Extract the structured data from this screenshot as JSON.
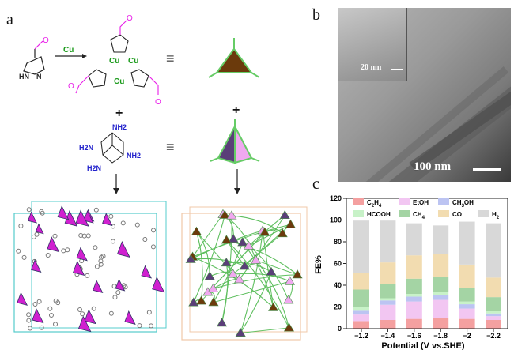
{
  "panels": {
    "a": "a",
    "b": "b",
    "c": "c"
  },
  "scheme": {
    "reagent_label": "Cu",
    "ligand_atoms": {
      "oxygen": "O",
      "nh": "HN",
      "n": "N"
    },
    "trimer_atoms": {
      "cu": "Cu",
      "n": "N",
      "o": "O"
    },
    "amine_label": "NH2",
    "amine_label_left": "H2N",
    "plus": "+",
    "equiv": "≡"
  },
  "tem": {
    "inset_scale": "20 nm",
    "main_scale": "100 nm"
  },
  "colors": {
    "magenta": "#e81ee8",
    "green": "#1a9a1a",
    "blue": "#2222cc",
    "brown": "#6b3a0c",
    "purple": "#5a3e78",
    "pink": "#f0a8f0"
  },
  "chart_data": {
    "type": "bar",
    "stacked": true,
    "categories": [
      "-1.2",
      "-1.4",
      "-1.6",
      "-1.8",
      "-2",
      "-2.2"
    ],
    "xlabel": "Potential (V vs.SHE)",
    "ylabel": "FE%",
    "ylim": [
      0,
      120
    ],
    "yticks": [
      "0",
      "20",
      "40",
      "60",
      "80",
      "100",
      "120"
    ],
    "legend_position": "top",
    "series": [
      {
        "name": "C2H4",
        "label_main": "C",
        "sub1": "2",
        "mid": "H",
        "sub2": "4",
        "color": "#f4a0a0",
        "values": [
          7,
          8,
          9,
          10,
          9,
          8
        ]
      },
      {
        "name": "EtOH",
        "label_main": "EtOH",
        "color": "#f2c6f2",
        "values": [
          6,
          14,
          16,
          16.5,
          9.5,
          3.5
        ]
      },
      {
        "name": "CH3OH",
        "label_main": "CH",
        "sub1": "3",
        "mid": "OH",
        "color": "#bcc4f2",
        "values": [
          3.5,
          4,
          4.5,
          4.5,
          4,
          2.5
        ]
      },
      {
        "name": "HCOOH",
        "label_main": "HCOOH",
        "color": "#c8f2c8",
        "values": [
          3.5,
          2,
          2.5,
          2.5,
          2.5,
          2
        ]
      },
      {
        "name": "CH4",
        "label_main": "CH",
        "sub1": "4",
        "color": "#a4d4a4",
        "values": [
          16,
          13,
          14,
          14.5,
          12.5,
          13
        ]
      },
      {
        "name": "CO",
        "label_main": "CO",
        "color": "#f2dcb0",
        "values": [
          15,
          20,
          21.5,
          21,
          21.5,
          18
        ]
      },
      {
        "name": "H2",
        "label_main": "H",
        "sub1": "2",
        "color": "#d8d8d8",
        "values": [
          48.5,
          38.5,
          29.5,
          26,
          39.5,
          50
        ]
      }
    ]
  }
}
